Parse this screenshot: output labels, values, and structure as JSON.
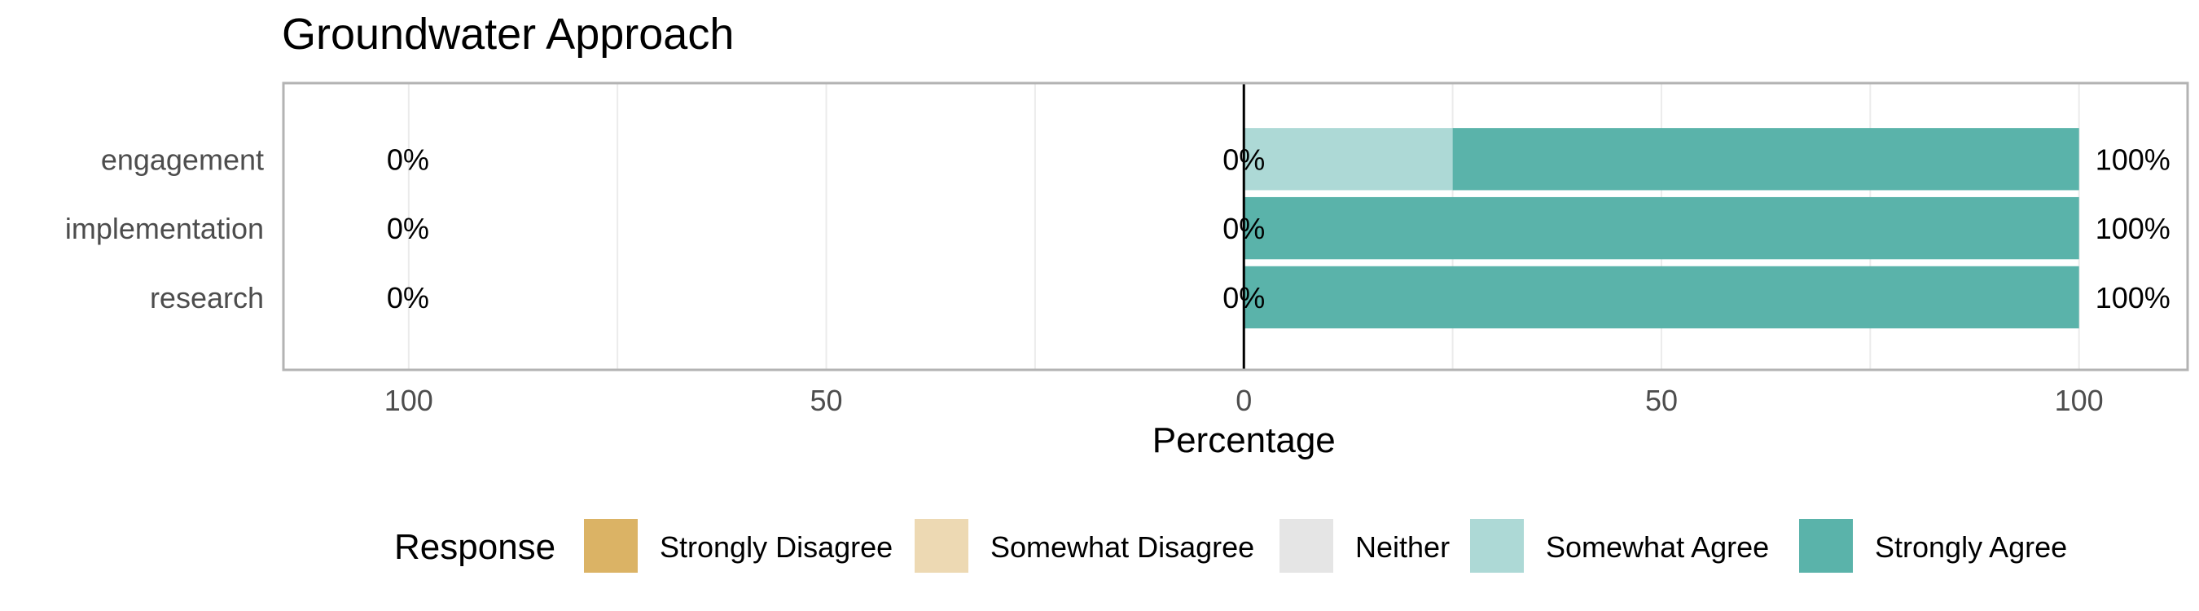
{
  "chart_data": {
    "type": "bar",
    "orientation": "horizontal",
    "stacked": "diverging",
    "title": "Groundwater Approach",
    "xlabel": "Percentage",
    "ylabel": "",
    "xlim": [
      -115,
      113
    ],
    "x_ticks": [
      -100,
      -50,
      0,
      50,
      100
    ],
    "x_tick_labels": [
      "100",
      "50",
      "0",
      "50",
      "100"
    ],
    "categories": [
      "engagement",
      "implementation",
      "research"
    ],
    "series": [
      {
        "name": "Strongly Disagree",
        "color": "#DBB365",
        "values": [
          0,
          0,
          0
        ]
      },
      {
        "name": "Somewhat Disagree",
        "color": "#EDD9B3",
        "values": [
          0,
          0,
          0
        ]
      },
      {
        "name": "Neither",
        "color": "#E5E5E5",
        "values": [
          0,
          0,
          0
        ]
      },
      {
        "name": "Somewhat Agree",
        "color": "#ADD9D6",
        "values": [
          25,
          0,
          0
        ]
      },
      {
        "name": "Strongly Agree",
        "color": "#5AB3AA",
        "values": [
          75,
          100,
          100
        ]
      }
    ],
    "left_labels": [
      "0%",
      "0%",
      "0%"
    ],
    "center_labels": [
      "0%",
      "0%",
      "0%"
    ],
    "right_labels": [
      "100%",
      "100%",
      "100%"
    ],
    "legend_title": "Response",
    "legend_position": "bottom",
    "grid": true
  }
}
